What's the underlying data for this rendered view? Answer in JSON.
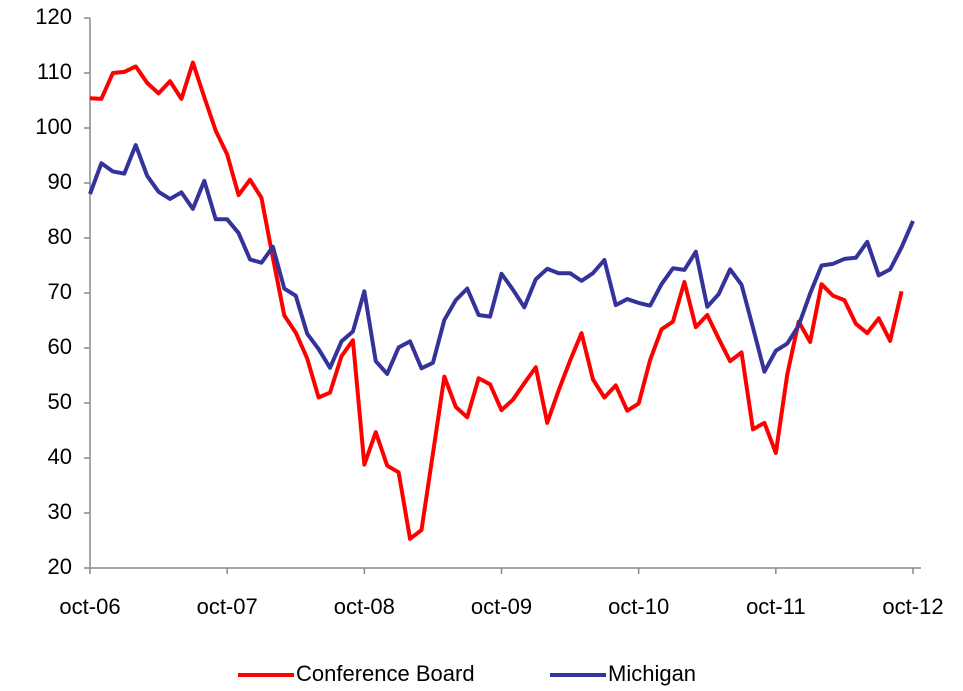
{
  "chart_data": {
    "type": "line",
    "categories": [
      "oct-06",
      null,
      null,
      null,
      null,
      null,
      null,
      null,
      null,
      null,
      null,
      null,
      "oct-07",
      null,
      null,
      null,
      null,
      null,
      null,
      null,
      null,
      null,
      null,
      null,
      "oct-08",
      null,
      null,
      null,
      null,
      null,
      null,
      null,
      null,
      null,
      null,
      null,
      "oct-09",
      null,
      null,
      null,
      null,
      null,
      null,
      null,
      null,
      null,
      null,
      null,
      "oct-10",
      null,
      null,
      null,
      null,
      null,
      null,
      null,
      null,
      null,
      null,
      null,
      "oct-11",
      null,
      null,
      null,
      null,
      null,
      null,
      null,
      null,
      null,
      null,
      null,
      "oct-12"
    ],
    "series": [
      {
        "name": "Conference Board",
        "color": "#ff0000",
        "values": [
          105.4,
          105.3,
          110.0,
          110.2,
          111.2,
          108.2,
          106.3,
          108.5,
          105.3,
          111.9,
          105.6,
          99.5,
          95.2,
          87.8,
          90.6,
          87.3,
          76.4,
          65.9,
          62.8,
          58.1,
          51.0,
          51.9,
          58.5,
          61.4,
          38.8,
          44.7,
          38.6,
          37.4,
          25.3,
          26.9,
          40.8,
          54.8,
          49.3,
          47.4,
          54.5,
          53.4,
          48.7,
          50.6,
          53.6,
          56.5,
          46.4,
          52.3,
          57.7,
          62.7,
          54.3,
          51.0,
          53.2,
          48.6,
          49.9,
          57.8,
          63.4,
          64.8,
          72.0,
          63.8,
          66.0,
          61.7,
          57.6,
          59.2,
          45.2,
          46.4,
          40.9,
          55.2,
          64.8,
          61.1,
          71.6,
          69.5,
          68.7,
          64.4,
          62.7,
          65.4,
          61.3,
          70.3,
          null
        ]
      },
      {
        "name": "Michigan",
        "color": "#333399",
        "values": [
          88.0,
          93.6,
          92.1,
          91.7,
          96.9,
          91.3,
          88.4,
          87.1,
          88.3,
          85.3,
          90.4,
          83.4,
          83.4,
          80.9,
          76.1,
          75.5,
          78.4,
          70.8,
          69.5,
          62.6,
          59.8,
          56.4,
          61.2,
          63.0,
          70.3,
          57.6,
          55.3,
          60.1,
          61.2,
          56.3,
          57.3,
          65.1,
          68.7,
          70.8,
          66.0,
          65.7,
          73.5,
          70.6,
          67.4,
          72.5,
          74.4,
          73.6,
          73.6,
          72.2,
          73.6,
          76.0,
          67.8,
          68.9,
          68.2,
          67.7,
          71.6,
          74.5,
          74.2,
          77.5,
          67.5,
          69.8,
          74.3,
          71.5,
          63.7,
          55.7,
          59.5,
          60.8,
          64.1,
          69.9,
          75.0,
          75.3,
          76.2,
          76.4,
          79.3,
          73.2,
          74.3,
          78.3,
          83.1
        ]
      }
    ],
    "ylim": [
      20,
      120
    ],
    "yticks": [
      20,
      30,
      40,
      50,
      60,
      70,
      80,
      90,
      100,
      110,
      120
    ],
    "legend": "bottom"
  }
}
